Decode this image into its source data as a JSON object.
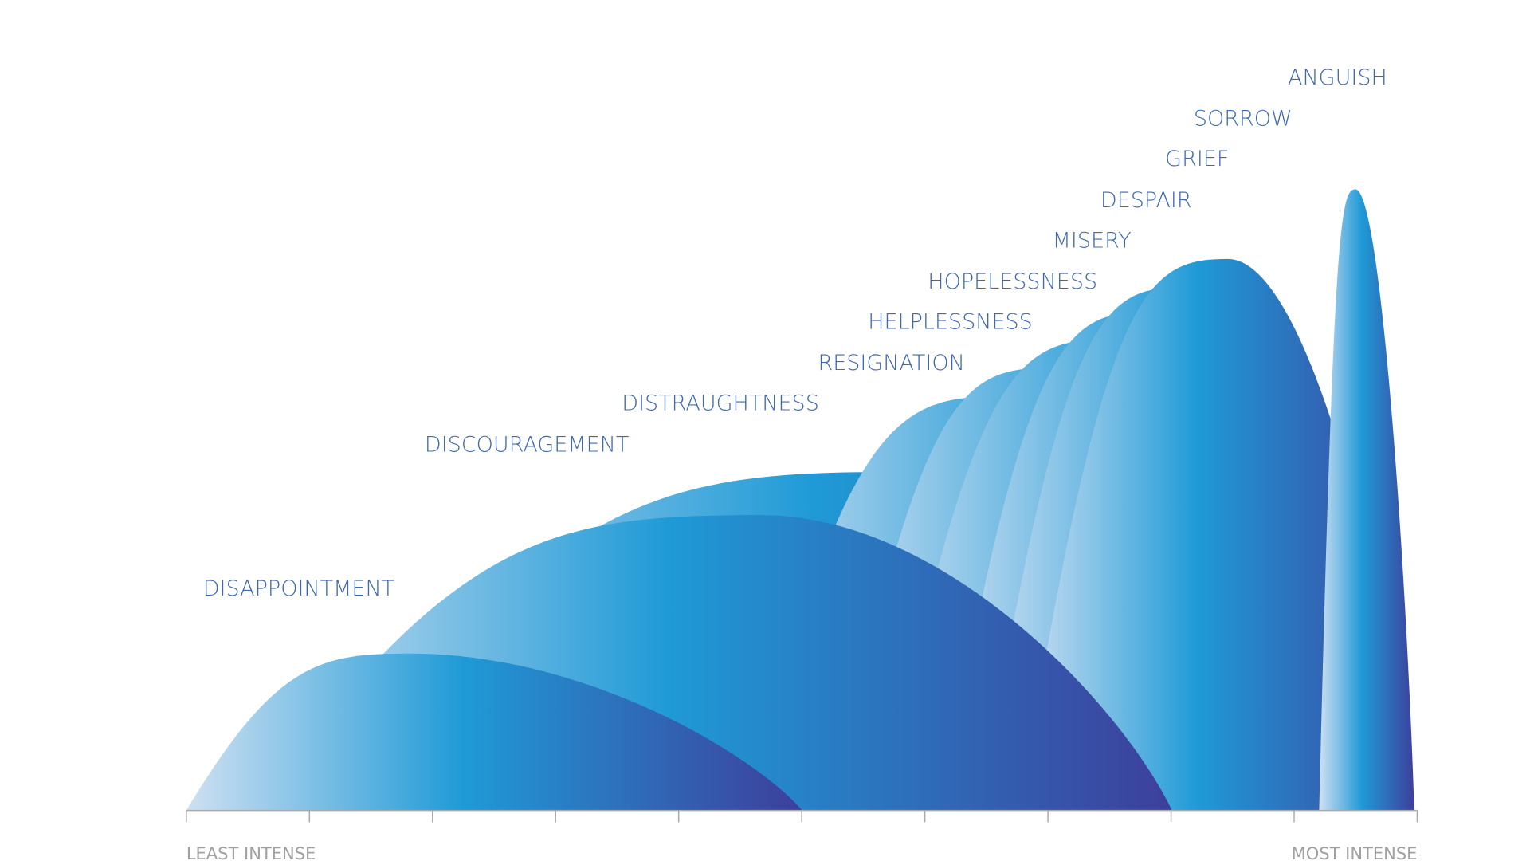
{
  "labels": [
    "DISAPPOINTMENT",
    "DISCOURAGEMENT",
    "DISTRAUGHTNESS",
    "RESIGNATION",
    "HELPLESSNESS",
    "HOPELESSNESS",
    "MISERY",
    "DESPAIR",
    "GRIEF",
    "SORROW",
    "ANGUISH"
  ],
  "axis": {
    "left": "LEAST INTENSE",
    "right": "MOST INTENSE"
  }
}
